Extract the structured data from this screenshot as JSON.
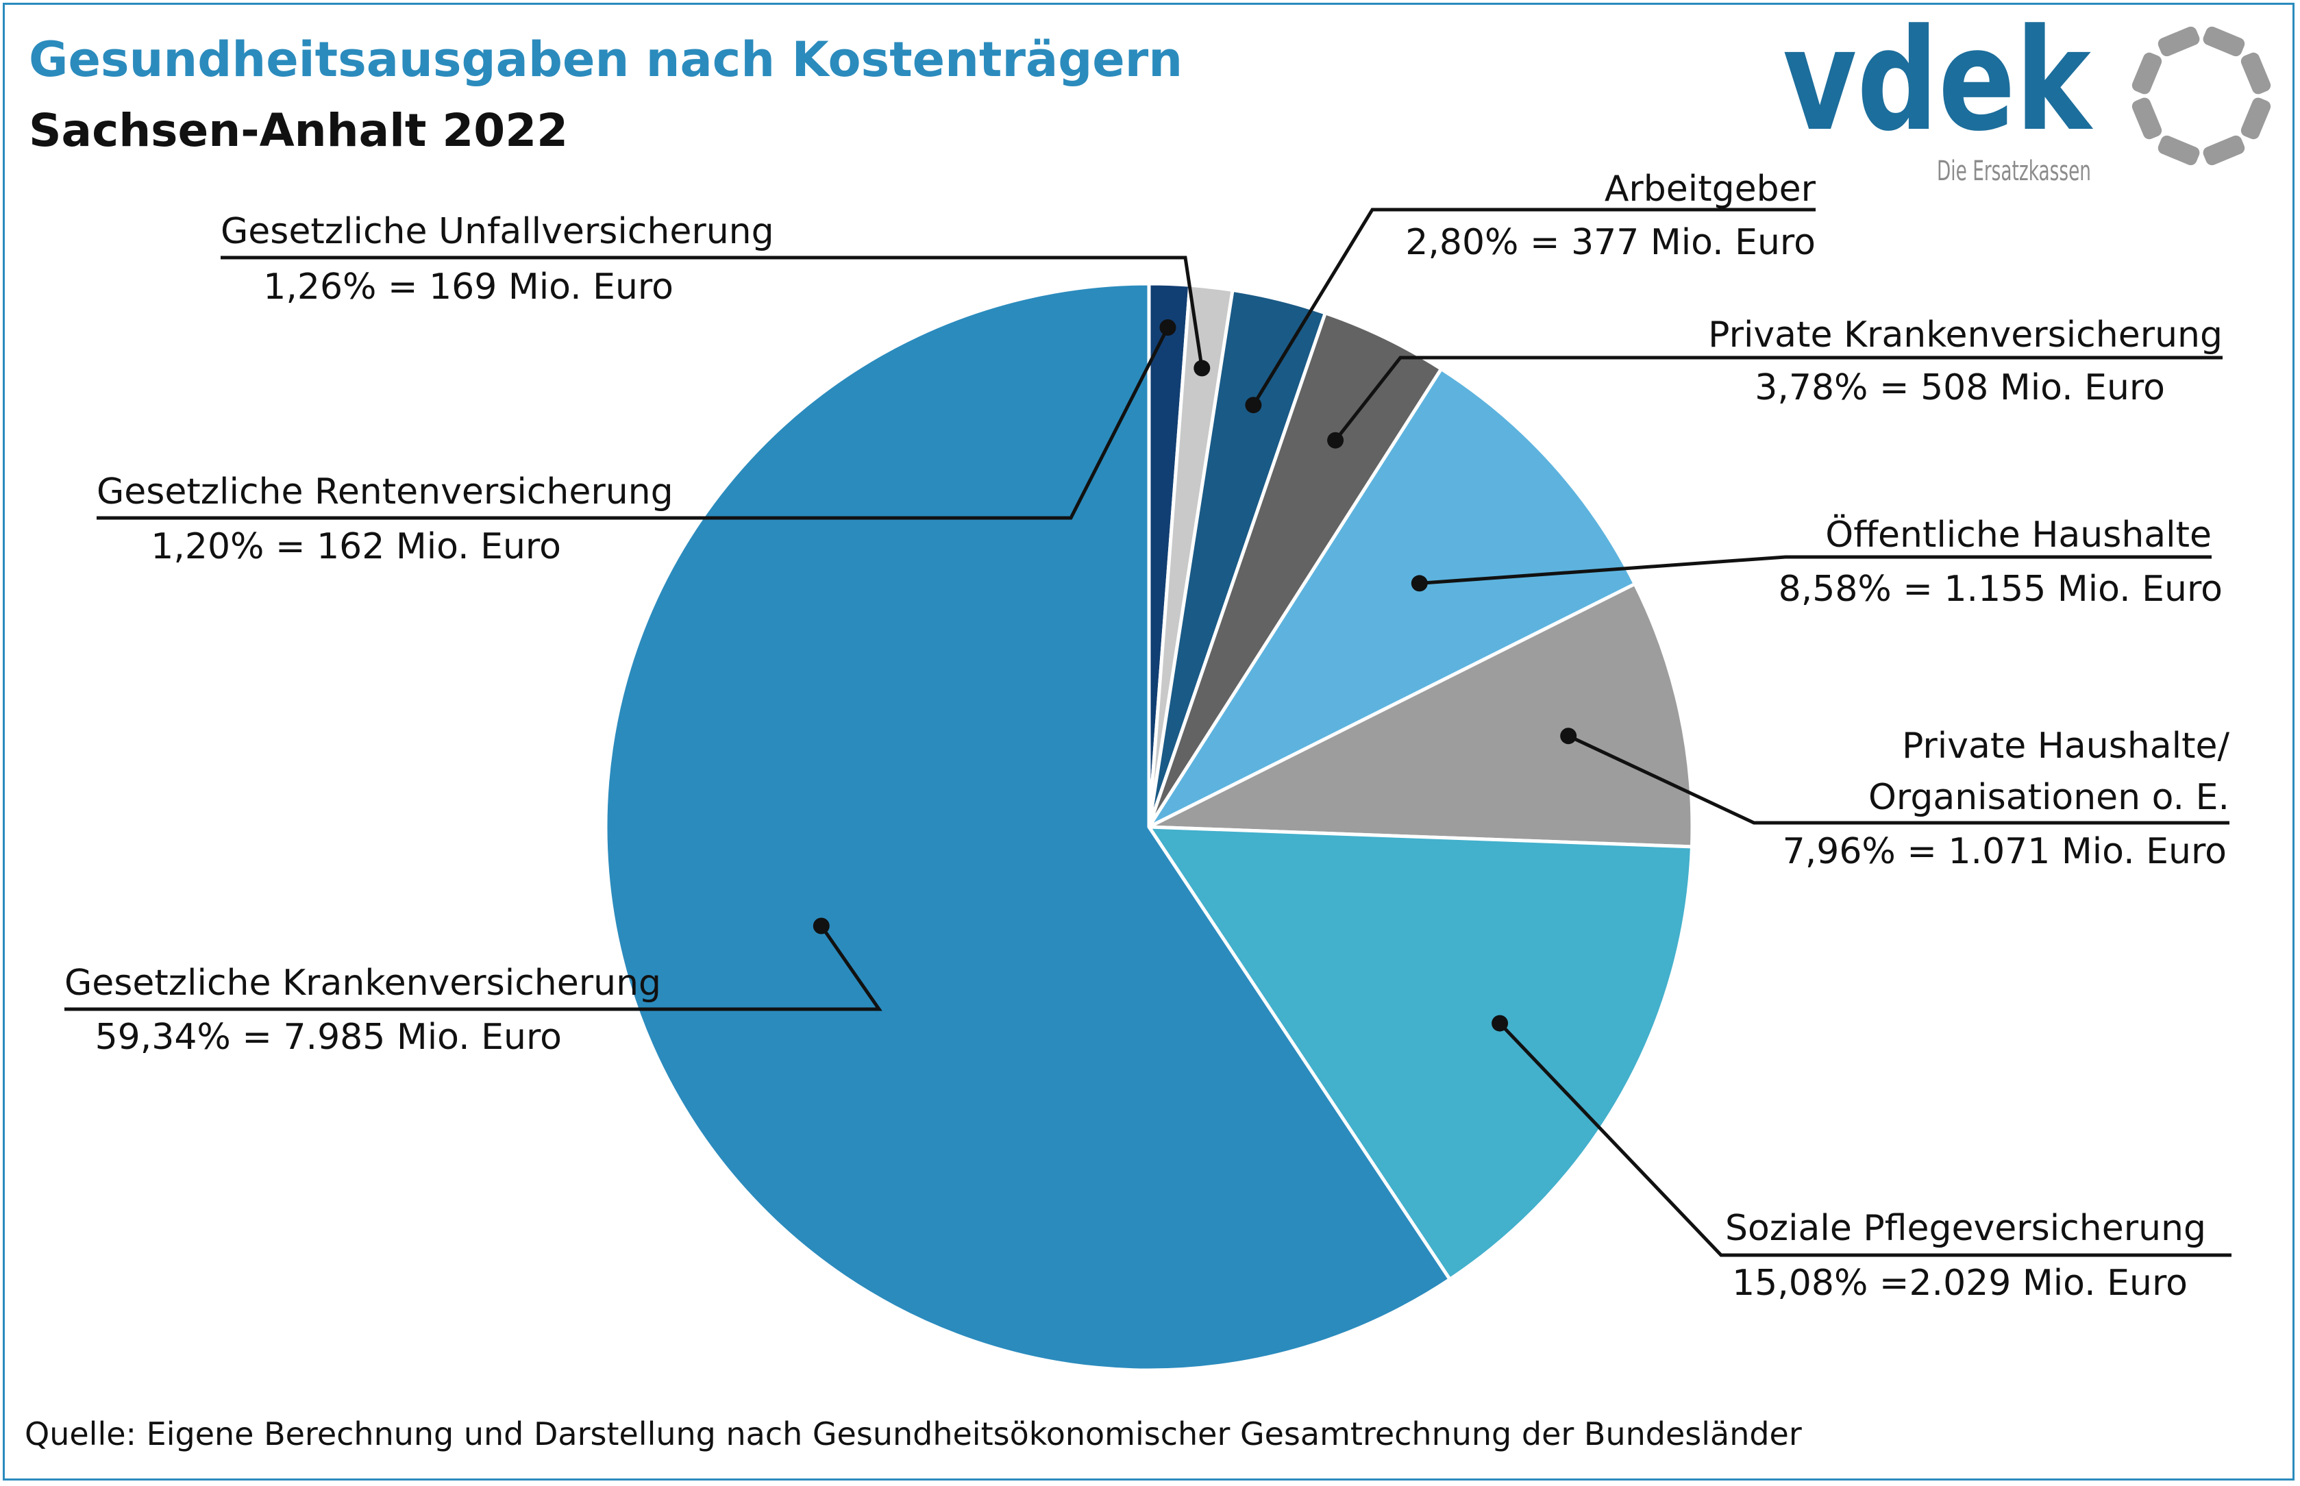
{
  "header": {
    "title": "Gesundheitsausgaben nach Kostenträgern",
    "subtitle": "Sachsen-Anhalt 2022"
  },
  "logo": {
    "wordmark": "vdek",
    "tagline": "Die Ersatzkassen",
    "color": "#1c6e9c",
    "ring_color": "#9a9a9a"
  },
  "footer": {
    "source": "Quelle: Eigene Berechnung und Darstellung nach Gesundheitsökonomischer Gesamtrechnung der Bundesländer"
  },
  "colors": {
    "accent": "#2b8bbd",
    "text": "#111111"
  },
  "chart_data": {
    "type": "pie",
    "title": "Gesundheitsausgaben nach Kostenträgern",
    "subtitle": "Sachsen-Anhalt 2022",
    "unit": "Mio. Euro",
    "start": "12 o'clock, clockwise",
    "slices": [
      {
        "name": "Gesetzliche Rentenversicherung",
        "percent": 1.2,
        "value": 162,
        "label_value": "1,20% = 162 Mio. Euro",
        "color": "#123f73"
      },
      {
        "name": "Gesetzliche Unfallversicherung",
        "percent": 1.26,
        "value": 169,
        "label_value": "1,26% = 169 Mio. Euro",
        "color": "#c9c9c9"
      },
      {
        "name": "Arbeitgeber",
        "percent": 2.8,
        "value": 377,
        "label_value": "2,80% = 377 Mio. Euro",
        "color": "#1a5a86"
      },
      {
        "name": "Private Krankenversicherung",
        "percent": 3.78,
        "value": 508,
        "label_value": "3,78% = 508 Mio. Euro",
        "color": "#636363"
      },
      {
        "name": "Öffentliche Haushalte",
        "percent": 8.58,
        "value": 1155,
        "label_value": "8,58% = 1.155 Mio. Euro",
        "color": "#5db3de"
      },
      {
        "name": "Private Haushalte/ Organisationen o. E.",
        "name_lines": [
          "Private Haushalte/",
          "Organisationen o. E."
        ],
        "percent": 7.96,
        "value": 1071,
        "label_value": "7,96% = 1.071 Mio. Euro",
        "color": "#9d9d9d"
      },
      {
        "name": "Soziale Pflegeversicherung",
        "percent": 15.08,
        "value": 2029,
        "label_value": "15,08% =2.029 Mio. Euro",
        "color": "#43b0cc"
      },
      {
        "name": "Gesetzliche Krankenversicherung",
        "percent": 59.34,
        "value": 7985,
        "label_value": "59,34% = 7.985 Mio. Euro",
        "color": "#2b8bbd"
      }
    ]
  }
}
